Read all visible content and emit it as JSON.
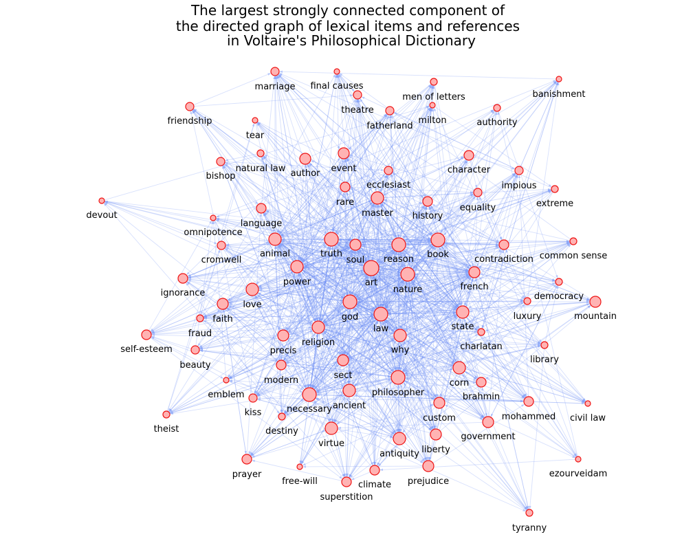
{
  "title": {
    "line1": "The largest strongly connected component of",
    "line2": "the directed graph of lexical items and references",
    "line3": "in Voltaire's Philosophical Dictionary"
  },
  "colors": {
    "edge": "#6f8ff5",
    "node_fill": "#ffb3b3",
    "node_stroke": "#ee1111",
    "background": "#ffffff"
  },
  "graph": {
    "type": "directed network",
    "nodes": [
      "marriage",
      "final causes",
      "men of letters",
      "banishment",
      "theatre",
      "fatherland",
      "milton",
      "friendship",
      "authority",
      "tear",
      "natural law",
      "author",
      "event",
      "bishop",
      "character",
      "ecclesiast",
      "impious",
      "rare",
      "master",
      "extreme",
      "devout",
      "equality",
      "history",
      "language",
      "omnipotence",
      "animal",
      "truth",
      "soul",
      "reason",
      "book",
      "cromwell",
      "contradiction",
      "common sense",
      "power",
      "art",
      "nature",
      "french",
      "ignorance",
      "love",
      "democracy",
      "luxury",
      "mountain",
      "faith",
      "god",
      "law",
      "state",
      "fraud",
      "religion",
      "charlatan",
      "self-esteem",
      "precis",
      "why",
      "beauty",
      "library",
      "sect",
      "modern",
      "corn",
      "emblem",
      "brahmin",
      "philosopher",
      "kiss",
      "necessary",
      "ancient",
      "custom",
      "civil law",
      "mohammed",
      "theist",
      "destiny",
      "government",
      "virtue",
      "antiquity",
      "liberty",
      "ezourveidam",
      "prayer",
      "free-will",
      "prejudice",
      "climate",
      "superstition",
      "tyranny"
    ]
  }
}
